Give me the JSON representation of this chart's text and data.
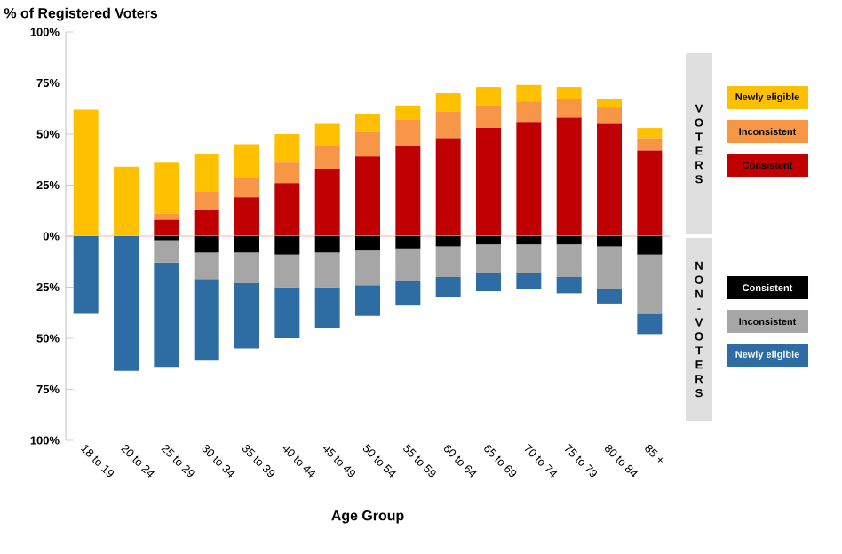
{
  "chart_data": {
    "type": "bar",
    "stacked": true,
    "ylabel": "% of Registered Voters",
    "xlabel": "Age Group",
    "categories": [
      "18 to 19",
      "20 to 24",
      "25 to 29",
      "30 to 34",
      "35 to 39",
      "40 to 44",
      "45 to 49",
      "50 to 54",
      "55 to 59",
      "60 to 64",
      "65 to 69",
      "70 to 74",
      "75 to 79",
      "80 to 84",
      "85 +"
    ],
    "series": [
      {
        "name": "Consistent",
        "color": "#c00000",
        "values": [
          0,
          0,
          8,
          13,
          19,
          26,
          33,
          39,
          44,
          48,
          53,
          56,
          58,
          55,
          42
        ]
      },
      {
        "name": "Inconsistent",
        "color": "#f79646",
        "values": [
          0,
          0,
          3,
          9,
          10,
          10,
          11,
          12,
          13,
          13,
          11,
          10,
          9,
          8,
          6
        ]
      },
      {
        "name": "Newly eligible",
        "color": "#ffc000",
        "values": [
          62,
          34,
          25,
          18,
          16,
          14,
          11,
          9,
          7,
          9,
          9,
          8,
          6,
          4,
          5
        ]
      },
      {
        "name": "Consistent",
        "color": "#000000",
        "values": [
          0,
          0,
          -2,
          -8,
          -8,
          -9,
          -8,
          -7,
          -6,
          -5,
          -4,
          -4,
          -4,
          -5,
          -9
        ]
      },
      {
        "name": "Inconsistent",
        "color": "#a6a6a6",
        "values": [
          0,
          0,
          -11,
          -13,
          -15,
          -16,
          -17,
          -17,
          -16,
          -15,
          -14,
          -14,
          -16,
          -21,
          -29
        ]
      },
      {
        "name": "Newly eligible",
        "color": "#2e6ca4",
        "values": [
          -38,
          -66,
          -51,
          -40,
          -32,
          -25,
          -20,
          -15,
          -12,
          -10,
          -9,
          -8,
          -8,
          -7,
          -10
        ]
      }
    ],
    "ylim": [
      -100,
      100
    ],
    "yticks": [
      {
        "value": -100,
        "label": "100%"
      },
      {
        "value": -75,
        "label": "75%"
      },
      {
        "value": -50,
        "label": "50%"
      },
      {
        "value": -25,
        "label": "25%"
      },
      {
        "value": 0,
        "label": "0%"
      },
      {
        "value": 25,
        "label": "25%"
      },
      {
        "value": 50,
        "label": "50%"
      },
      {
        "value": 75,
        "label": "75%"
      },
      {
        "value": 100,
        "label": "100%"
      }
    ],
    "legend": "right",
    "ref_lines": [
      {
        "axis": "y",
        "value": 0,
        "color": "#ffb2b2"
      }
    ],
    "annotations": [
      "V O T E R S",
      "N O N - V O T E R S"
    ]
  }
}
